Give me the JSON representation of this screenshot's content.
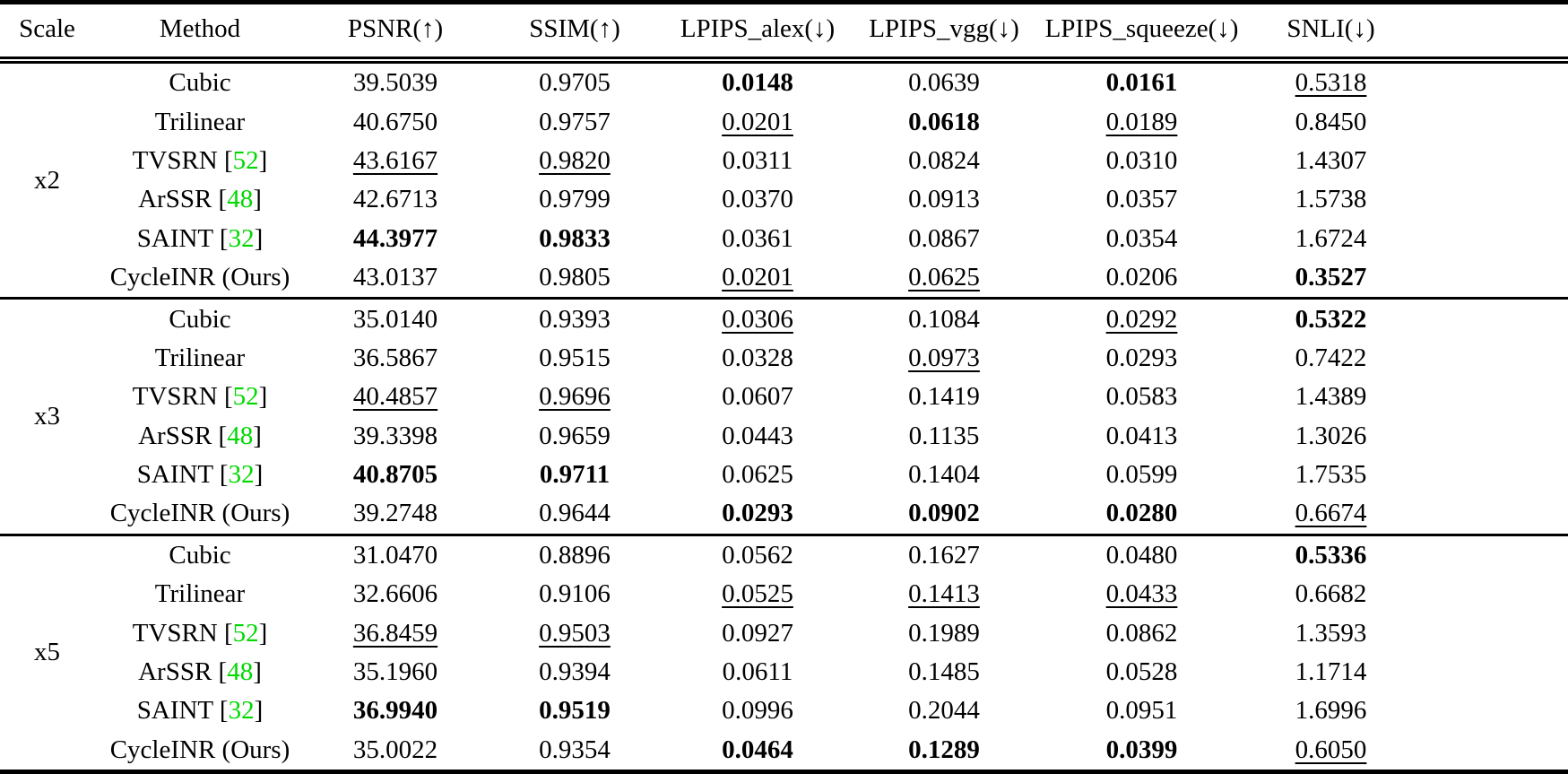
{
  "table": {
    "citation_color": "#00D800",
    "headers": [
      "Scale",
      "Method",
      "PSNR(↑)",
      "SSIM(↑)",
      "LPIPS_alex(↓)",
      "LPIPS_vgg(↓)",
      "LPIPS_squeeze(↓)",
      "SNLI(↓)"
    ],
    "style_legend": {
      "b": "bold-best",
      "u": "underline-second-best",
      "n": "normal"
    },
    "groups": [
      {
        "scale": "x2",
        "rows": [
          {
            "method": "Cubic",
            "cite": null,
            "values": [
              "39.5039",
              "0.9705",
              "0.0148",
              "0.0639",
              "0.0161",
              "0.5318"
            ],
            "styles": [
              "n",
              "n",
              "b",
              "n",
              "b",
              "u"
            ]
          },
          {
            "method": "Trilinear",
            "cite": null,
            "values": [
              "40.6750",
              "0.9757",
              "0.0201",
              "0.0618",
              "0.0189",
              "0.8450"
            ],
            "styles": [
              "n",
              "n",
              "u",
              "b",
              "u",
              "n"
            ]
          },
          {
            "method": "TVSRN",
            "cite": "52",
            "values": [
              "43.6167",
              "0.9820",
              "0.0311",
              "0.0824",
              "0.0310",
              "1.4307"
            ],
            "styles": [
              "u",
              "u",
              "n",
              "n",
              "n",
              "n"
            ]
          },
          {
            "method": "ArSSR",
            "cite": "48",
            "values": [
              "42.6713",
              "0.9799",
              "0.0370",
              "0.0913",
              "0.0357",
              "1.5738"
            ],
            "styles": [
              "n",
              "n",
              "n",
              "n",
              "n",
              "n"
            ]
          },
          {
            "method": "SAINT",
            "cite": "32",
            "values": [
              "44.3977",
              "0.9833",
              "0.0361",
              "0.0867",
              "0.0354",
              "1.6724"
            ],
            "styles": [
              "b",
              "b",
              "n",
              "n",
              "n",
              "n"
            ]
          },
          {
            "method": "CycleINR (Ours)",
            "cite": null,
            "values": [
              "43.0137",
              "0.9805",
              "0.0201",
              "0.0625",
              "0.0206",
              "0.3527"
            ],
            "styles": [
              "n",
              "n",
              "u",
              "u",
              "n",
              "b"
            ]
          }
        ]
      },
      {
        "scale": "x3",
        "rows": [
          {
            "method": "Cubic",
            "cite": null,
            "values": [
              "35.0140",
              "0.9393",
              "0.0306",
              "0.1084",
              "0.0292",
              "0.5322"
            ],
            "styles": [
              "n",
              "n",
              "u",
              "n",
              "u",
              "b"
            ]
          },
          {
            "method": "Trilinear",
            "cite": null,
            "values": [
              "36.5867",
              "0.9515",
              "0.0328",
              "0.0973",
              "0.0293",
              "0.7422"
            ],
            "styles": [
              "n",
              "n",
              "n",
              "u",
              "n",
              "n"
            ]
          },
          {
            "method": "TVSRN",
            "cite": "52",
            "values": [
              "40.4857",
              "0.9696",
              "0.0607",
              "0.1419",
              "0.0583",
              "1.4389"
            ],
            "styles": [
              "u",
              "u",
              "n",
              "n",
              "n",
              "n"
            ]
          },
          {
            "method": "ArSSR",
            "cite": "48",
            "values": [
              "39.3398",
              "0.9659",
              "0.0443",
              "0.1135",
              "0.0413",
              "1.3026"
            ],
            "styles": [
              "n",
              "n",
              "n",
              "n",
              "n",
              "n"
            ]
          },
          {
            "method": "SAINT",
            "cite": "32",
            "values": [
              "40.8705",
              "0.9711",
              "0.0625",
              "0.1404",
              "0.0599",
              "1.7535"
            ],
            "styles": [
              "b",
              "b",
              "n",
              "n",
              "n",
              "n"
            ]
          },
          {
            "method": "CycleINR (Ours)",
            "cite": null,
            "values": [
              "39.2748",
              "0.9644",
              "0.0293",
              "0.0902",
              "0.0280",
              "0.6674"
            ],
            "styles": [
              "n",
              "n",
              "b",
              "b",
              "b",
              "u"
            ]
          }
        ]
      },
      {
        "scale": "x5",
        "rows": [
          {
            "method": "Cubic",
            "cite": null,
            "values": [
              "31.0470",
              "0.8896",
              "0.0562",
              "0.1627",
              "0.0480",
              "0.5336"
            ],
            "styles": [
              "n",
              "n",
              "n",
              "n",
              "n",
              "b"
            ]
          },
          {
            "method": "Trilinear",
            "cite": null,
            "values": [
              "32.6606",
              "0.9106",
              "0.0525",
              "0.1413",
              "0.0433",
              "0.6682"
            ],
            "styles": [
              "n",
              "n",
              "u",
              "u",
              "u",
              "n"
            ]
          },
          {
            "method": "TVSRN",
            "cite": "52",
            "values": [
              "36.8459",
              "0.9503",
              "0.0927",
              "0.1989",
              "0.0862",
              "1.3593"
            ],
            "styles": [
              "u",
              "u",
              "n",
              "n",
              "n",
              "n"
            ]
          },
          {
            "method": "ArSSR",
            "cite": "48",
            "values": [
              "35.1960",
              "0.9394",
              "0.0611",
              "0.1485",
              "0.0528",
              "1.1714"
            ],
            "styles": [
              "n",
              "n",
              "n",
              "n",
              "n",
              "n"
            ]
          },
          {
            "method": "SAINT",
            "cite": "32",
            "values": [
              "36.9940",
              "0.9519",
              "0.0996",
              "0.2044",
              "0.0951",
              "1.6996"
            ],
            "styles": [
              "b",
              "b",
              "n",
              "n",
              "n",
              "n"
            ]
          },
          {
            "method": "CycleINR (Ours)",
            "cite": null,
            "values": [
              "35.0022",
              "0.9354",
              "0.0464",
              "0.1289",
              "0.0399",
              "0.6050"
            ],
            "styles": [
              "n",
              "n",
              "b",
              "b",
              "b",
              "u"
            ]
          }
        ]
      }
    ]
  }
}
